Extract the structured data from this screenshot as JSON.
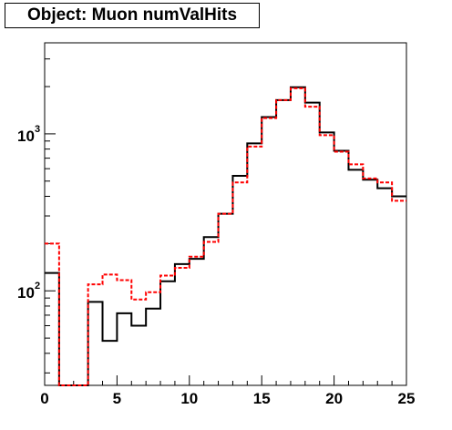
{
  "title": "Object: Muon numValHits",
  "chart_data": {
    "type": "histogram",
    "title": "Object: Muon numValHits",
    "xlabel": "",
    "ylabel": "",
    "xlim": [
      0,
      25
    ],
    "ylim": [
      25,
      3800
    ],
    "y_scale": "log",
    "grid": false,
    "x_ticks": [
      "0",
      "5",
      "10",
      "15",
      "20",
      "25"
    ],
    "y_ticks": [
      {
        "base": "10",
        "exponent": "2",
        "value": 100
      },
      {
        "base": "10",
        "exponent": "3",
        "value": 1000
      }
    ],
    "bin_edges": [
      -1,
      0,
      1,
      2,
      3,
      4,
      5,
      6,
      7,
      8,
      9,
      10,
      11,
      12,
      13,
      14,
      15,
      16,
      17,
      18,
      19,
      20,
      21,
      22,
      23,
      24,
      25
    ],
    "series": [
      {
        "color": "#000000",
        "dash": "solid",
        "values": [
          0,
          130,
          25,
          25,
          85,
          48,
          72,
          60,
          77,
          115,
          148,
          160,
          220,
          310,
          540,
          870,
          1280,
          1640,
          1980,
          1580,
          1020,
          780,
          590,
          510,
          450,
          400
        ]
      },
      {
        "color": "#ff0000",
        "dash": "dashed",
        "values": [
          0,
          200,
          25,
          25,
          110,
          127,
          117,
          88,
          98,
          125,
          140,
          165,
          205,
          310,
          490,
          830,
          1260,
          1640,
          1950,
          1490,
          980,
          770,
          640,
          520,
          490,
          375
        ]
      }
    ]
  }
}
